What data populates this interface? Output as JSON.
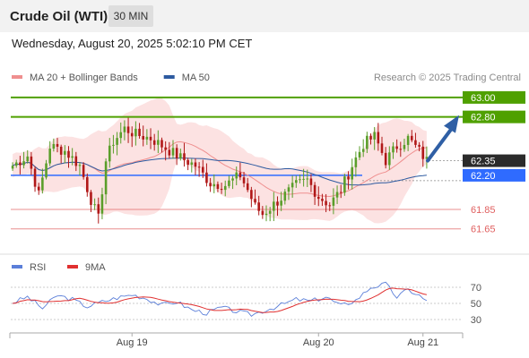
{
  "header": {
    "title": "Crude Oil (WTI)",
    "timeframe": "30 MIN",
    "datetime": "Wednesday, August 20, 2025 5:02:10 PM CET"
  },
  "colors": {
    "green": "#4fa000",
    "blue": "#2f6bff",
    "red": "#e06060",
    "dark": "#2b2b2b",
    "ma20": "#ef8f8f",
    "ma50": "#2d5aa0",
    "band": "#fbd8d8",
    "arrow": "#2f5fa5",
    "rsi": "#5b7fd9",
    "rsi_ma": "#e03030"
  },
  "chart_data": [
    {
      "type": "candlestick",
      "legend": [
        {
          "name": "MA 20 + Bollinger Bands",
          "color": "#ef8f8f"
        },
        {
          "name": "MA 50",
          "color": "#2d5aa0"
        }
      ],
      "legend_position": "top-left",
      "watermark": "Research © 2025 Trading Central",
      "ylim": [
        61.5,
        63.1
      ],
      "x_ticks": [
        "Aug 19",
        "Aug 20",
        "Aug 21"
      ],
      "levels": [
        {
          "value": 63.0,
          "label": "63.00",
          "style": "resistance",
          "color": "#4fa000"
        },
        {
          "value": 62.8,
          "label": "62.80",
          "style": "resistance",
          "color": "#4fa000"
        },
        {
          "value": 62.35,
          "label": "62.35",
          "style": "current",
          "color": "#2b2b2b"
        },
        {
          "value": 62.2,
          "label": "62.20",
          "style": "pivot",
          "color": "#2f6bff"
        },
        {
          "value": 61.85,
          "label": "61.85",
          "style": "support",
          "color": "#e06060"
        },
        {
          "value": 61.65,
          "label": "61.65",
          "style": "support",
          "color": "#e06060"
        }
      ],
      "anchors": [
        [
          0,
          62.3
        ],
        [
          4,
          62.4
        ],
        [
          7,
          62.0
        ],
        [
          10,
          62.5
        ],
        [
          14,
          62.45
        ],
        [
          18,
          62.3
        ],
        [
          21,
          61.95
        ],
        [
          23,
          61.75
        ],
        [
          25,
          62.35
        ],
        [
          27,
          62.55
        ],
        [
          30,
          62.68
        ],
        [
          33,
          62.62
        ],
        [
          37,
          62.58
        ],
        [
          41,
          62.48
        ],
        [
          45,
          62.38
        ],
        [
          49,
          62.3
        ],
        [
          53,
          62.12
        ],
        [
          57,
          62.1
        ],
        [
          61,
          62.2
        ],
        [
          63,
          62.05
        ],
        [
          65,
          61.88
        ],
        [
          67,
          61.8
        ],
        [
          70,
          61.9
        ],
        [
          73,
          62.0
        ],
        [
          76,
          62.1
        ],
        [
          79,
          62.15
        ],
        [
          82,
          61.98
        ],
        [
          85,
          61.9
        ],
        [
          88,
          62.05
        ],
        [
          91,
          62.3
        ],
        [
          94,
          62.52
        ],
        [
          97,
          62.6
        ],
        [
          100,
          62.35
        ],
        [
          103,
          62.5
        ],
        [
          106,
          62.58
        ],
        [
          109,
          62.45
        ],
        [
          111,
          62.35
        ]
      ],
      "candle_count": 112,
      "moving_averages": {
        "ma20_period": 20,
        "ma50_period": 50,
        "bb_std": 2
      },
      "projection": {
        "from": 62.35,
        "to": 62.8,
        "direction": "up"
      }
    },
    {
      "type": "line",
      "legend": [
        {
          "name": "RSI",
          "color": "#5b7fd9"
        },
        {
          "name": "9MA",
          "color": "#e03030"
        }
      ],
      "ylim": [
        20,
        80
      ],
      "y_ticks": [
        70,
        50,
        30
      ],
      "x_ticks": [
        "Aug 19",
        "Aug 20",
        "Aug 21"
      ],
      "anchors": [
        [
          0,
          51
        ],
        [
          4,
          58
        ],
        [
          8,
          44
        ],
        [
          12,
          60
        ],
        [
          16,
          55
        ],
        [
          20,
          46
        ],
        [
          24,
          52
        ],
        [
          28,
          57
        ],
        [
          32,
          61
        ],
        [
          36,
          56
        ],
        [
          40,
          48
        ],
        [
          44,
          52
        ],
        [
          48,
          42
        ],
        [
          52,
          38
        ],
        [
          56,
          45
        ],
        [
          60,
          40
        ],
        [
          64,
          36
        ],
        [
          68,
          42
        ],
        [
          72,
          48
        ],
        [
          76,
          55
        ],
        [
          80,
          53
        ],
        [
          84,
          58
        ],
        [
          88,
          47
        ],
        [
          92,
          54
        ],
        [
          96,
          70
        ],
        [
          100,
          74
        ],
        [
          103,
          58
        ],
        [
          106,
          67
        ],
        [
          109,
          60
        ],
        [
          111,
          52
        ]
      ]
    }
  ]
}
